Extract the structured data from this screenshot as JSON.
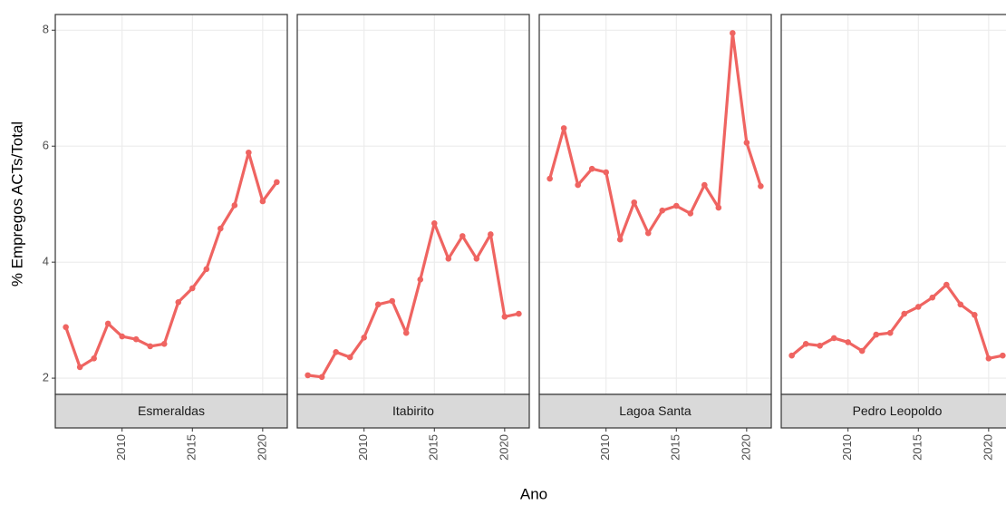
{
  "chart_data": {
    "type": "line",
    "x_label": "Ano",
    "y_label": "% Empregos ACTs/Total",
    "x": [
      2006,
      2007,
      2008,
      2009,
      2010,
      2011,
      2012,
      2013,
      2014,
      2015,
      2016,
      2017,
      2018,
      2019,
      2020,
      2021
    ],
    "xlim": [
      2005.25,
      2021.75
    ],
    "xticks": [
      2010,
      2015,
      2020
    ],
    "ylim": [
      1.72,
      8.27
    ],
    "yticks": [
      2,
      4,
      6,
      8
    ],
    "grid": true,
    "color": "#ef6461",
    "series": [
      {
        "name": "Esmeraldas",
        "values": [
          2.88,
          2.19,
          2.34,
          2.94,
          2.72,
          2.67,
          2.55,
          2.59,
          3.31,
          3.55,
          3.88,
          4.58,
          4.98,
          5.89,
          5.05,
          5.38
        ]
      },
      {
        "name": "Itabirito",
        "values": [
          2.05,
          2.02,
          2.45,
          2.36,
          2.7,
          3.27,
          3.33,
          2.78,
          3.7,
          4.67,
          4.06,
          4.45,
          4.06,
          4.48,
          3.06,
          3.11
        ]
      },
      {
        "name": "Lagoa Santa",
        "values": [
          5.44,
          6.31,
          5.33,
          5.61,
          5.55,
          4.39,
          5.03,
          4.5,
          4.89,
          4.97,
          4.84,
          5.33,
          4.94,
          7.95,
          6.06,
          5.31
        ]
      },
      {
        "name": "Pedro Leopoldo",
        "values": [
          2.39,
          2.59,
          2.56,
          2.69,
          2.62,
          2.47,
          2.75,
          2.78,
          3.11,
          3.23,
          3.39,
          3.61,
          3.27,
          3.09,
          2.34,
          2.39
        ]
      }
    ]
  }
}
